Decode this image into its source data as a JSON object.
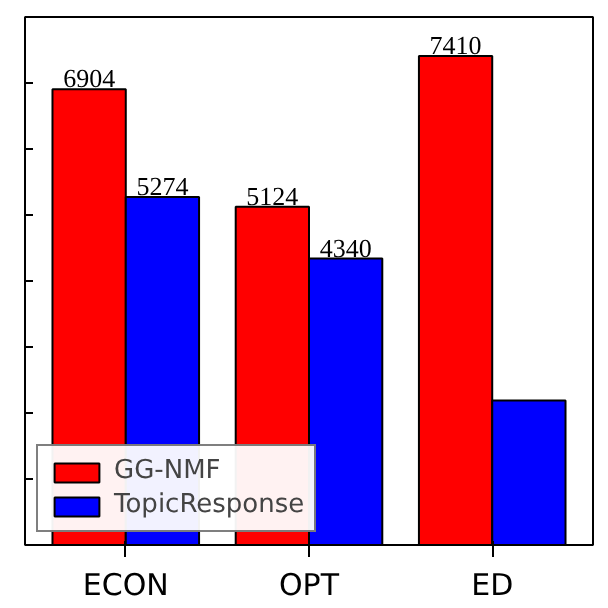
{
  "chart_data": {
    "type": "bar",
    "categories": [
      "ECON",
      "OPT",
      "ED"
    ],
    "series": [
      {
        "name": "GG-NMF",
        "color": "#ff0000",
        "values": [
          6904,
          5124,
          7410
        ],
        "value_labels": [
          "6904",
          "5124",
          "7410"
        ]
      },
      {
        "name": "TopicResponse",
        "color": "#0000ff",
        "values": [
          5274,
          4340,
          2190
        ],
        "value_labels": [
          "5274",
          "4340",
          null
        ]
      }
    ],
    "ylim": [
      0,
      8000
    ],
    "yticks": [
      {
        "value": 0,
        "label": null
      },
      {
        "value": 1000,
        "label": null
      },
      {
        "value": 2000,
        "label": null
      },
      {
        "value": 3000,
        "label": null
      },
      {
        "value": 4000,
        "label": null
      },
      {
        "value": 5000,
        "label": null
      },
      {
        "value": 6000,
        "label": null
      },
      {
        "value": 7000,
        "label": null
      },
      {
        "value": 8000,
        "label": null
      }
    ],
    "tick_labels": "x",
    "grid": false,
    "legend": "bottom left"
  }
}
